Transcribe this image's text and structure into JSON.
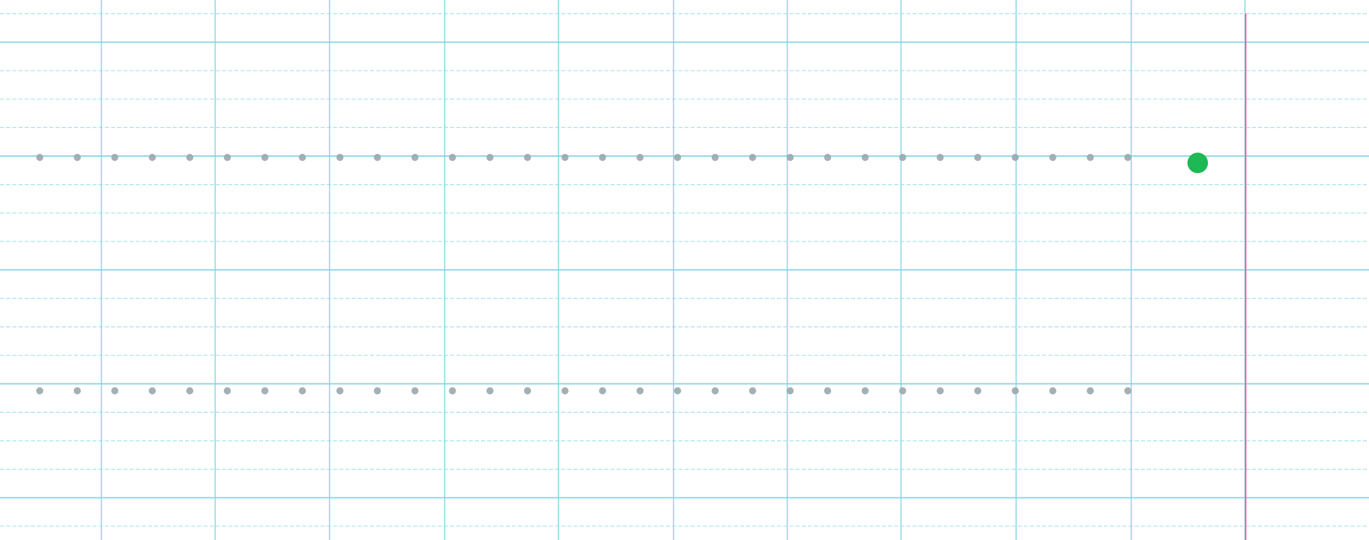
{
  "worksheet": {
    "paper_color": "#ffffff",
    "grid_line_color": "#7fd3e3",
    "dashed_line_color": "#8fdbe9",
    "margin_line_color": "#e46aa6",
    "dot_color": "#9aa7ad",
    "start_marker_color": "#1db954",
    "rows": [
      {
        "dot_count": 30,
        "has_start_marker": true
      },
      {
        "dot_count": 30,
        "has_start_marker": false
      }
    ]
  }
}
